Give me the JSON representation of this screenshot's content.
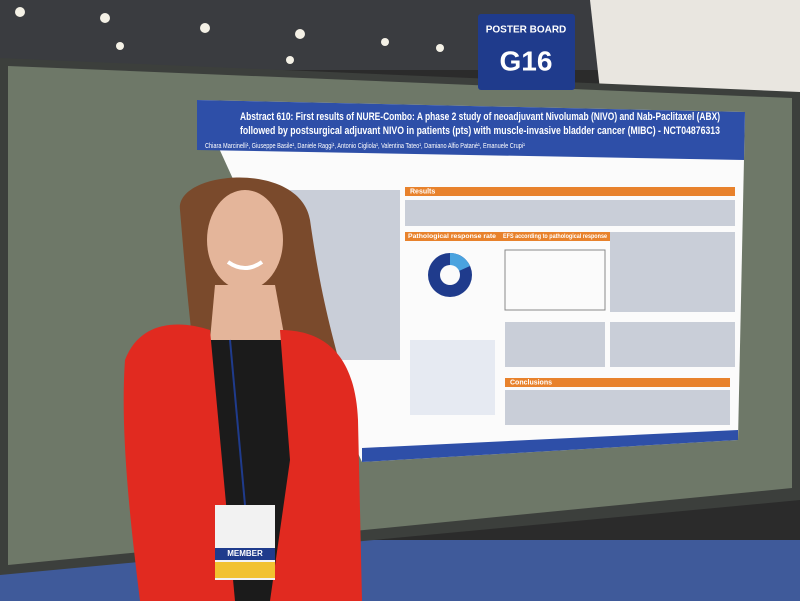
{
  "sign": {
    "label": "POSTER BOARD",
    "number": "G16"
  },
  "poster": {
    "title_line1": "Abstract 610: First results of NURE-Combo: A phase 2 study of neoadjuvant Nivolumab (NIVO) and Nab-Paclitaxel (ABX)",
    "title_line2": "followed by postsurgical adjuvant NIVO in patients (pts) with muscle-invasive bladder cancer (MIBC) - NCT04876313",
    "authors": "Chiara Marcinelli¹, Giuseppe Basile¹, Daniele Raggi¹, Antonio Cigliola¹, Valentina Tateo¹, Damiano Alfio Patanè¹, Emanuele Crupi¹",
    "sections": [
      "Results",
      "Pathological response rate",
      "EFS according to pathological response",
      "Conclusions"
    ]
  },
  "badge": {
    "label": "MEMBER"
  }
}
